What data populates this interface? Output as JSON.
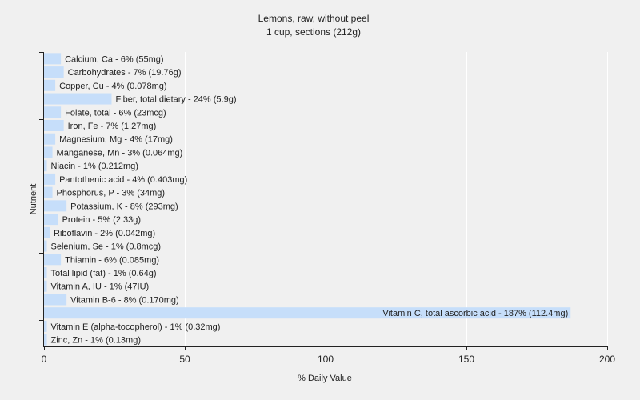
{
  "chart_data": {
    "type": "bar",
    "orientation": "horizontal",
    "title": "Lemons, raw, without peel",
    "subtitle": "1 cup, sections (212g)",
    "xlabel": "% Daily Value",
    "ylabel": "Nutrient",
    "xlim": [
      0,
      200
    ],
    "xticks": [
      0,
      50,
      100,
      150,
      200
    ],
    "grid": "vertical",
    "bar_color": "#c6defa",
    "grid_color": "#ffffff",
    "categories": [
      "Calcium, Ca",
      "Carbohydrates",
      "Copper, Cu",
      "Fiber, total dietary",
      "Folate, total",
      "Iron, Fe",
      "Magnesium, Mg",
      "Manganese, Mn",
      "Niacin",
      "Pantothenic acid",
      "Phosphorus, P",
      "Potassium, K",
      "Protein",
      "Riboflavin",
      "Selenium, Se",
      "Thiamin",
      "Total lipid (fat)",
      "Vitamin A, IU",
      "Vitamin B-6",
      "Vitamin C, total ascorbic acid",
      "Vitamin E (alpha-tocopherol)",
      "Zinc, Zn"
    ],
    "values": [
      6,
      7,
      4,
      24,
      6,
      7,
      4,
      3,
      1,
      4,
      3,
      8,
      5,
      2,
      1,
      6,
      1,
      1,
      8,
      187,
      1,
      1
    ],
    "labels": [
      "Calcium, Ca - 6% (55mg)",
      "Carbohydrates - 7% (19.76g)",
      "Copper, Cu - 4% (0.078mg)",
      "Fiber, total dietary - 24% (5.9g)",
      "Folate, total - 6% (23mcg)",
      "Iron, Fe - 7% (1.27mg)",
      "Magnesium, Mg - 4% (17mg)",
      "Manganese, Mn - 3% (0.064mg)",
      "Niacin - 1% (0.212mg)",
      "Pantothenic acid - 4% (0.403mg)",
      "Phosphorus, P - 3% (34mg)",
      "Potassium, K - 8% (293mg)",
      "Protein - 5% (2.33g)",
      "Riboflavin - 2% (0.042mg)",
      "Selenium, Se - 1% (0.8mcg)",
      "Thiamin - 6% (0.085mg)",
      "Total lipid (fat) - 1% (0.64g)",
      "Vitamin A, IU - 1% (47IU)",
      "Vitamin B-6 - 8% (0.170mg)",
      "Vitamin C, total ascorbic acid - 187% (112.4mg)",
      "Vitamin E (alpha-tocopherol) - 1% (0.32mg)",
      "Zinc, Zn - 1% (0.13mg)"
    ]
  }
}
